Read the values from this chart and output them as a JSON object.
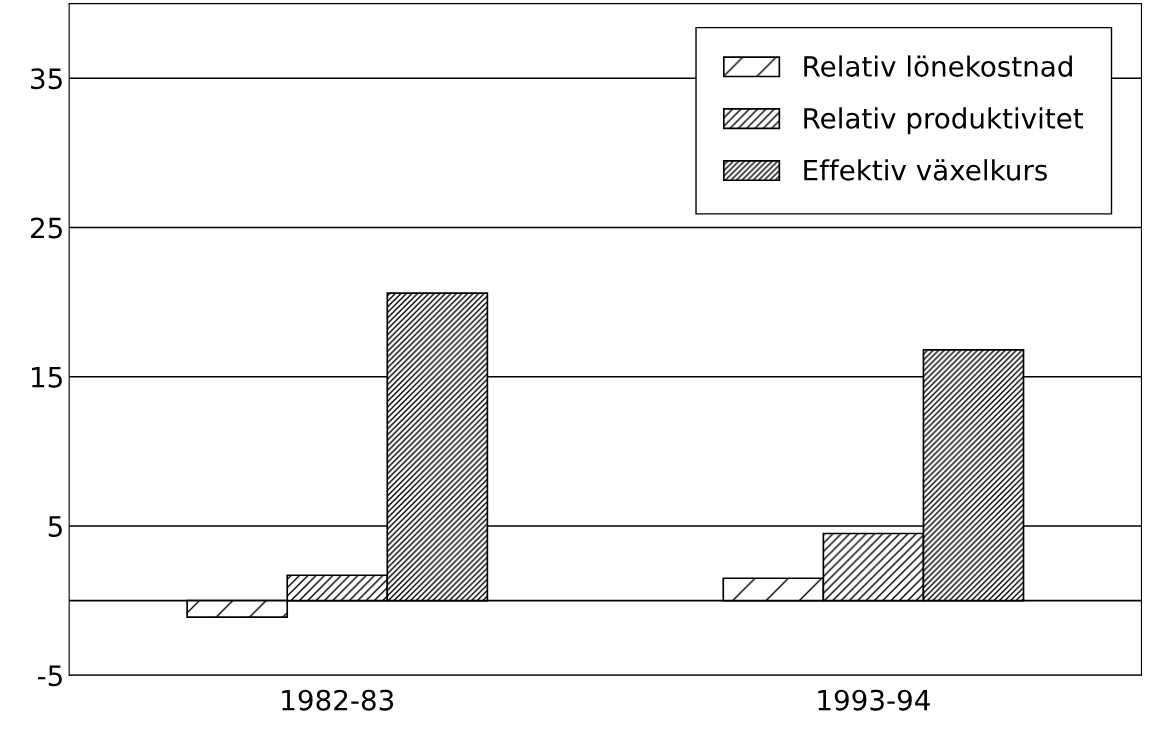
{
  "chart_data": {
    "type": "bar",
    "categories": [
      "1982-83",
      "1993-94"
    ],
    "series": [
      {
        "name": "Relativ lönekostnad",
        "color": "#000000",
        "values": [
          -1.1,
          1.5
        ]
      },
      {
        "name": "Relativ produktivitet",
        "color": "#000000",
        "values": [
          1.7,
          4.5
        ]
      },
      {
        "name": "Effektiv växelkurs",
        "color": "#000000",
        "values": [
          20.6,
          16.8
        ]
      }
    ],
    "ylim": [
      -5,
      40
    ],
    "yticks": [
      -5,
      5,
      15,
      25,
      35
    ],
    "ref_lines": [
      {
        "axis": "y",
        "value": 0,
        "color": "#000000"
      }
    ],
    "grid": "y",
    "legend": "top right"
  }
}
